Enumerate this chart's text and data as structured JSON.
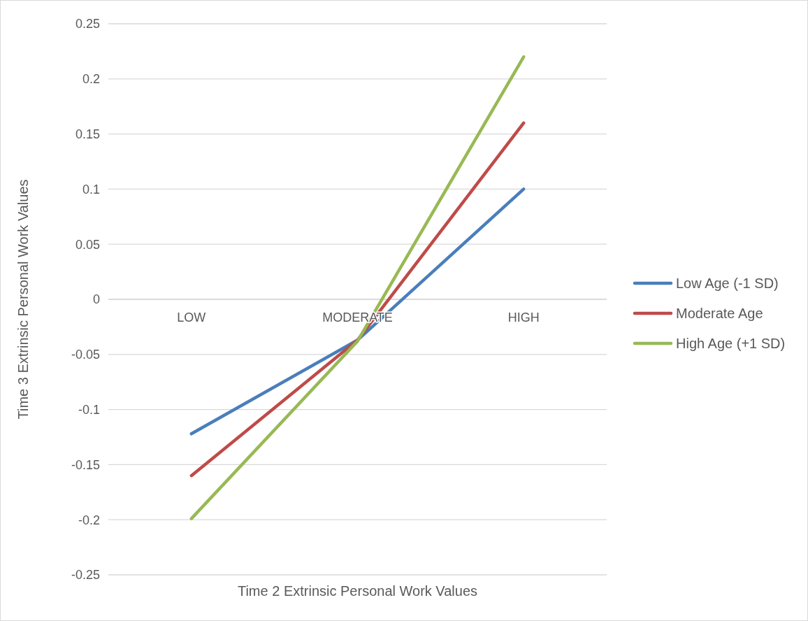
{
  "chart_data": {
    "type": "line",
    "xlabel": "Time 2 Extrinsic Personal Work Values",
    "ylabel": "Time 3 Extrinsic Personal Work Values",
    "categories": [
      "LOW",
      "MODERATE",
      "HIGH"
    ],
    "series": [
      {
        "name": "Low Age (-1 SD)",
        "color": "#4a7ebb",
        "values": [
          -0.122,
          -0.037,
          0.1
        ]
      },
      {
        "name": "Moderate Age",
        "color": "#be4b48",
        "values": [
          -0.16,
          -0.037,
          0.16
        ]
      },
      {
        "name": "High Age (+1 SD)",
        "color": "#98b954",
        "values": [
          -0.199,
          -0.038,
          0.22
        ]
      }
    ],
    "ylim": [
      -0.25,
      0.25
    ],
    "yticks": [
      -0.25,
      -0.2,
      -0.15,
      -0.1,
      -0.05,
      0,
      0.05,
      0.1,
      0.15,
      0.2,
      0.25
    ],
    "grid": "y",
    "legend": "right",
    "marker": "none",
    "line_style": "solid"
  }
}
